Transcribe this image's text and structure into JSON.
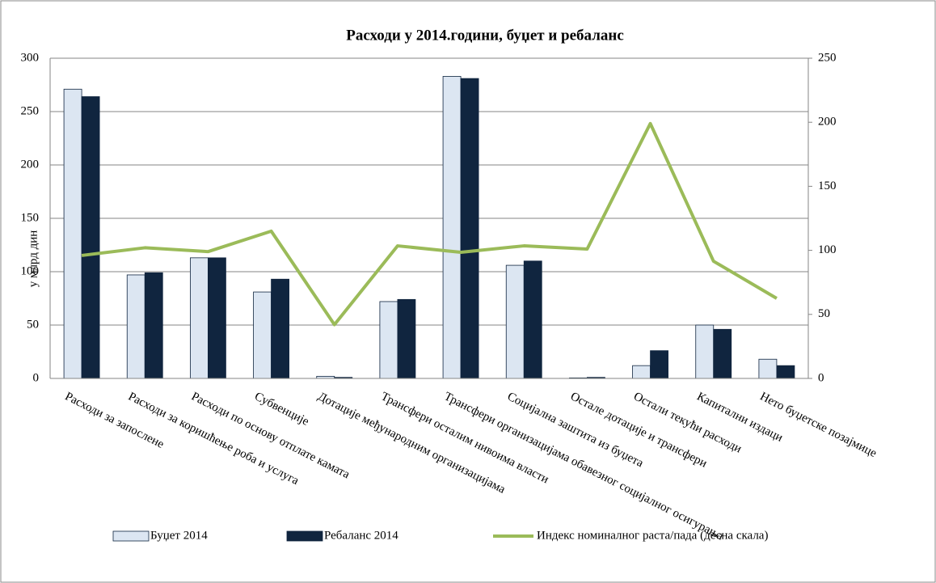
{
  "chart_data": {
    "type": "bar_line",
    "title": "Расходи у 2014.години, буџет и ребаланс",
    "ylabel": "у млрд дин",
    "categories": [
      "Расходи за запослене",
      "Расходи за коришћење роба и услуга",
      "Расходи по основу отплате камата",
      "Субвенције",
      "Дотације међународним организацијама",
      "Трансфери осталим нивоима власти",
      "Трансфери организацијама обавезног социјалног осигурања",
      "Социјална заштита из буџета",
      "Остале дотације и трансфери",
      "Остали текући расходи",
      "Капитални издаци",
      "Нето буџетске позајмице"
    ],
    "series": [
      {
        "name": "Буџет 2014",
        "color": "#dce6f2",
        "values": [
          271,
          97,
          113,
          81,
          2,
          72,
          283,
          106,
          0.5,
          12,
          50,
          18
        ]
      },
      {
        "name": "Ребаланс 2014",
        "color": "#10253f",
        "values": [
          264,
          99,
          113,
          93,
          1,
          74,
          281,
          110,
          1,
          26,
          46,
          12
        ]
      },
      {
        "name": "Индекс номиналног раста/пада (десна скала)",
        "color": "#9bbb59",
        "axis": "y2",
        "values": [
          96,
          102,
          99,
          115,
          42,
          103.5,
          98.5,
          103.5,
          101,
          199,
          91.5,
          62.5
        ]
      }
    ],
    "ylim": [
      0,
      300
    ],
    "yticks": [
      0,
      50,
      100,
      150,
      200,
      250,
      300
    ],
    "y2lim": [
      0,
      250
    ],
    "y2ticks": [
      0,
      50,
      100,
      150,
      200,
      250
    ],
    "grid": true,
    "legend": "bottom"
  }
}
